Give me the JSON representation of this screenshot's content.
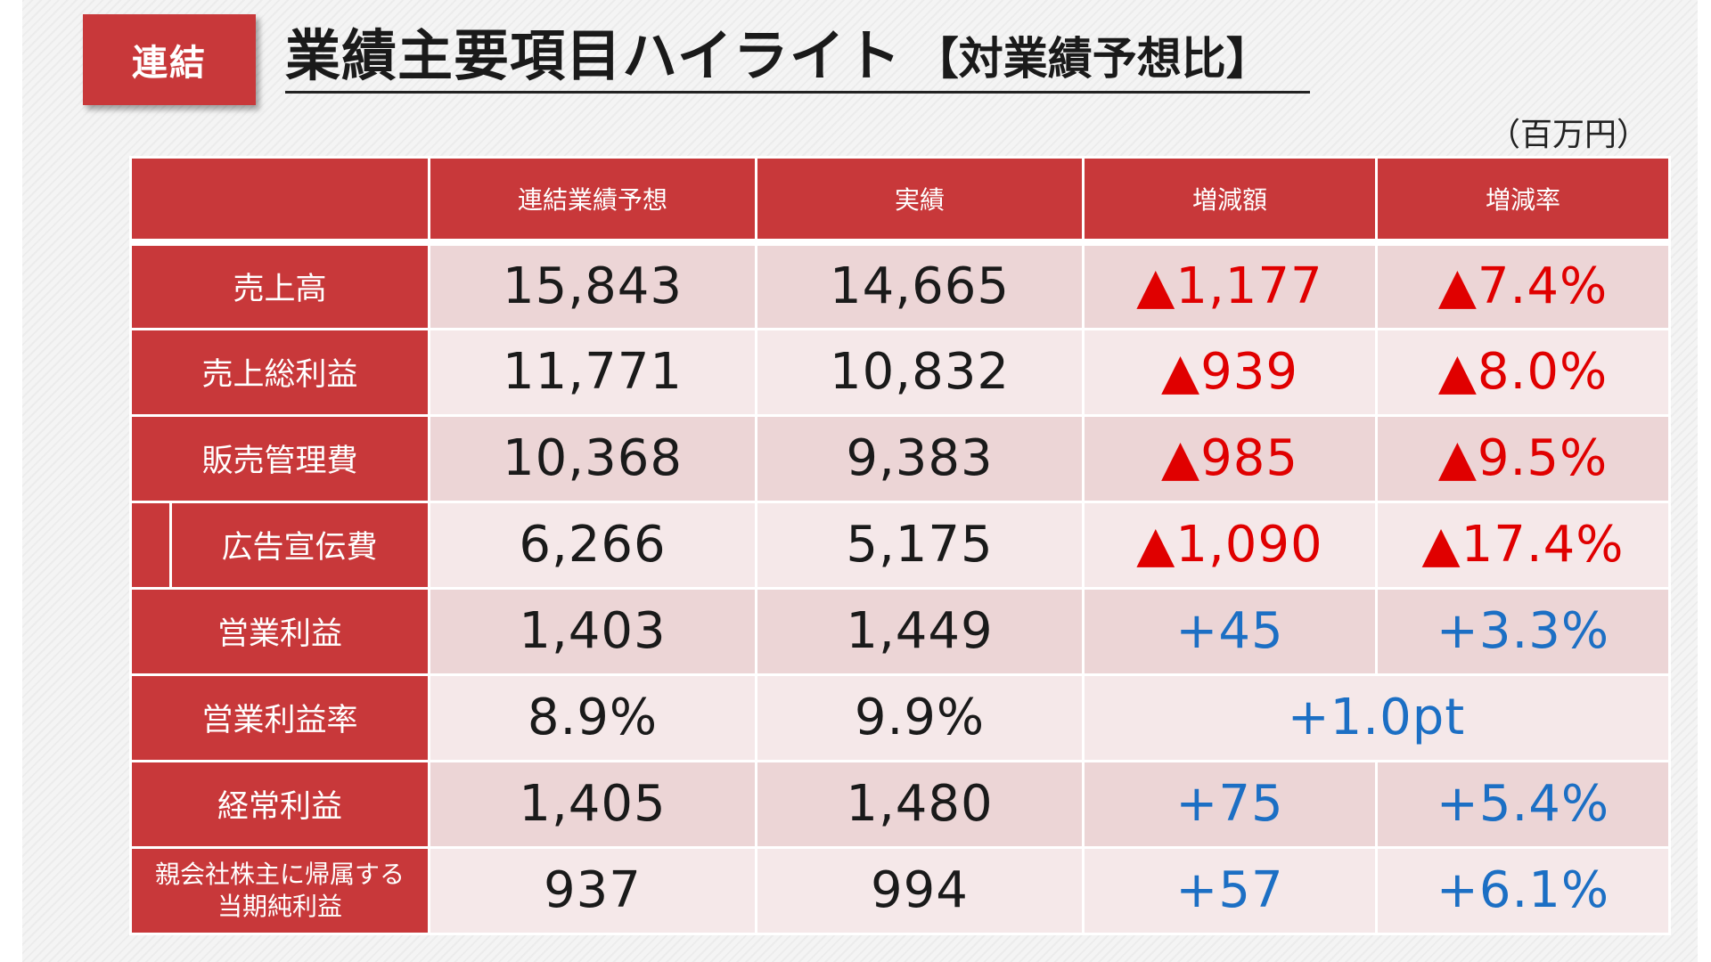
{
  "badge": "連結",
  "title": {
    "main": "業績主要項目ハイライト",
    "sub": "【対業績予想比】"
  },
  "unit": "（百万円）",
  "colors": {
    "accent": "#c8383a",
    "negative": "#e00000",
    "positive": "#1c6fc4"
  },
  "table": {
    "headers": [
      "",
      "連結業績予想",
      "実績",
      "増減額",
      "増減率"
    ],
    "rows": [
      {
        "label": "売上高",
        "forecast": "15,843",
        "actual": "14,665",
        "diff": "▲1,177",
        "rate": "▲7.4%"
      },
      {
        "label": "売上総利益",
        "forecast": "11,771",
        "actual": "10,832",
        "diff": "▲939",
        "rate": "▲8.0%"
      },
      {
        "label": "販売管理費",
        "forecast": "10,368",
        "actual": "9,383",
        "diff": "▲985",
        "rate": "▲9.5%"
      },
      {
        "label": "広告宣伝費",
        "forecast": "6,266",
        "actual": "5,175",
        "diff": "▲1,090",
        "rate": "▲17.4%"
      },
      {
        "label": "営業利益",
        "forecast": "1,403",
        "actual": "1,449",
        "diff": "+45",
        "rate": "+3.3%"
      },
      {
        "label": "営業利益率",
        "forecast": "8.9%",
        "actual": "9.9%",
        "diff_merged": "+1.0pt"
      },
      {
        "label": "経常利益",
        "forecast": "1,405",
        "actual": "1,480",
        "diff": "+75",
        "rate": "+5.4%"
      },
      {
        "label_line1": "親会社株主に帰属する",
        "label_line2": "当期純利益",
        "forecast": "937",
        "actual": "994",
        "diff": "+57",
        "rate": "+6.1%"
      }
    ]
  }
}
